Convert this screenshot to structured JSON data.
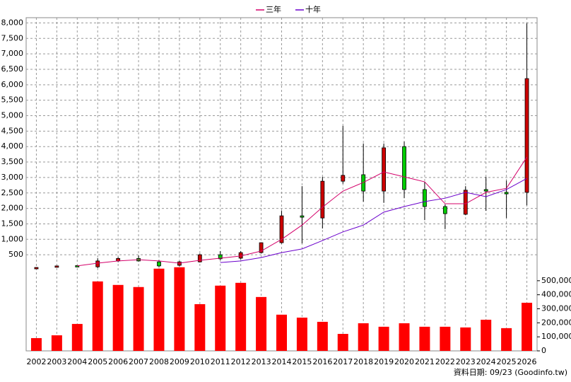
{
  "chart_data": [
    {
      "type": "candlestick",
      "categories": [
        "2002",
        "2003",
        "2004",
        "2005",
        "2006",
        "2007",
        "2008",
        "2009",
        "2010",
        "2011",
        "2012",
        "2013",
        "2014",
        "2015",
        "2016",
        "2017",
        "2018",
        "2019",
        "2020",
        "2021",
        "2022",
        "2023",
        "2024",
        "2025",
        "2026"
      ],
      "open": [
        80,
        110,
        150,
        110,
        300,
        380,
        270,
        160,
        270,
        500,
        390,
        570,
        890,
        1760,
        1690,
        2880,
        3090,
        2560,
        4000,
        2610,
        2060,
        1810,
        2610,
        2520,
        2520
      ],
      "high": [
        95,
        140,
        160,
        390,
        420,
        480,
        330,
        300,
        540,
        620,
        620,
        900,
        1920,
        2720,
        3020,
        4670,
        4100,
        4100,
        4160,
        2850,
        2130,
        2720,
        3020,
        2900,
        7990
      ],
      "low": [
        75,
        100,
        120,
        70,
        260,
        280,
        90,
        120,
        250,
        330,
        350,
        540,
        860,
        870,
        1350,
        2800,
        2220,
        2180,
        2330,
        1620,
        1330,
        1780,
        1920,
        1690,
        2100
      ],
      "close": [
        90,
        140,
        130,
        300,
        380,
        300,
        140,
        270,
        500,
        370,
        570,
        890,
        1760,
        1720,
        2880,
        3070,
        2560,
        3960,
        2610,
        2060,
        1830,
        2590,
        2560,
        2470,
        6200
      ],
      "up_color": "#cc0000",
      "down_color": "#00cc00",
      "series": [
        {
          "name": "三年",
          "color": "#d4006a",
          "values": [
            null,
            null,
            140,
            230,
            300,
            340,
            300,
            230,
            320,
            390,
            460,
            620,
            1000,
            1460,
            2040,
            2560,
            2840,
            3180,
            3020,
            2860,
            2150,
            2150,
            2520,
            2650,
            3660
          ]
        },
        {
          "name": "十年",
          "color": "#6a00cc",
          "values": [
            null,
            null,
            null,
            null,
            null,
            null,
            null,
            null,
            null,
            250,
            300,
            410,
            570,
            690,
            960,
            1240,
            1460,
            1880,
            2060,
            2220,
            2330,
            2520,
            2380,
            2610,
            2970
          ]
        }
      ],
      "ylim": [
        0,
        8170
      ],
      "yticks": [
        500,
        {
          "value": 1000,
          "label": "1,000"
        },
        {
          "value": 1500,
          "label": "1,500"
        },
        {
          "value": 2000,
          "label": "2,000"
        },
        {
          "value": 2500,
          "label": "2,500"
        },
        {
          "value": 3000,
          "label": "3,000"
        },
        {
          "value": 3500,
          "label": "3,500"
        },
        {
          "value": 4000,
          "label": "4,000"
        },
        {
          "value": 4500,
          "label": "4,500"
        },
        {
          "value": 5000,
          "label": "5,000"
        },
        {
          "value": 5500,
          "label": "5,500"
        },
        {
          "value": 6000,
          "label": "6,000"
        },
        {
          "value": 6500,
          "label": "6,500"
        },
        {
          "value": 7000,
          "label": "7,000"
        },
        {
          "value": 7500,
          "label": "7,500"
        },
        {
          "value": 8000,
          "label": "8,000"
        }
      ],
      "grid": true,
      "legend": "top",
      "footnote": "資料日期: 09/23 (Goodinfo.tw)"
    },
    {
      "type": "bar",
      "color": "#ff0000",
      "values": [
        91000,
        111000,
        192000,
        495000,
        470000,
        455000,
        586000,
        596000,
        333000,
        465000,
        485000,
        384000,
        258000,
        237000,
        207000,
        121000,
        197000,
        172000,
        197000,
        172000,
        172000,
        167000,
        222000,
        162000,
        343000
      ],
      "ylim": [
        0,
        600000
      ],
      "yticks": [
        0,
        {
          "value": 100000,
          "label": "100,000"
        },
        {
          "value": 200000,
          "label": "200,000"
        },
        {
          "value": 300000,
          "label": "300,000"
        },
        {
          "value": 400000,
          "label": "400,000"
        },
        {
          "value": 500000,
          "label": "500,000"
        }
      ],
      "grid": true
    }
  ]
}
